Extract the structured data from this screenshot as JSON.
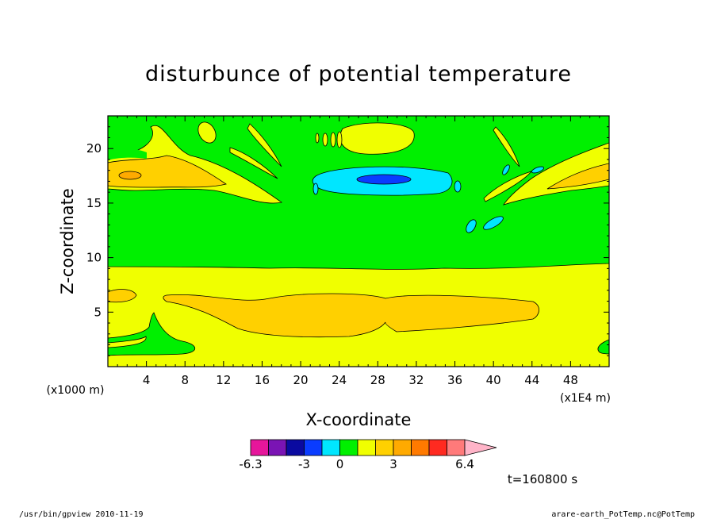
{
  "chart_data": {
    "type": "heatmap",
    "subtype": "filled-contour",
    "title": "disturbunce of potential temperature",
    "xlabel": "X-coordinate",
    "ylabel": "Z-coordinate",
    "x_unit": "(x1E4 m)",
    "y_unit": "(x1000 m)",
    "xlim": [
      0,
      52
    ],
    "ylim": [
      0,
      23
    ],
    "x_ticks": [
      4,
      8,
      12,
      16,
      20,
      24,
      28,
      32,
      36,
      40,
      44,
      48
    ],
    "y_ticks": [
      5,
      10,
      15,
      20
    ],
    "grid": false,
    "colorbar": {
      "placement": "bottom",
      "labels": [
        "-6.3",
        "-3",
        "0",
        "3",
        "6.4"
      ],
      "colors": [
        "#e6169b",
        "#7a14b4",
        "#0a0aa0",
        "#0a3cff",
        "#00e6ff",
        "#00f000",
        "#f0ff00",
        "#ffd000",
        "#ffaa00",
        "#ff7a00",
        "#ff2a20",
        "#ff7a7a",
        "#ffb4c8"
      ]
    },
    "background_level_color": "#f0ff00",
    "regions": [
      {
        "level": "0",
        "color": "#00f000",
        "desc": "upper layer z 9-23"
      },
      {
        "level": "1",
        "color": "#f0ff00",
        "desc": "lower layer z 0-9"
      },
      {
        "level": "2",
        "color": "#ffd000",
        "desc": "warm lens x 6-44 z 3-7"
      },
      {
        "level": "-1",
        "color": "#00e6ff",
        "desc": "cold cell near x 28 z 17"
      },
      {
        "level": "-2",
        "color": "#0a3cff",
        "desc": "core near x 28 z 17"
      }
    ],
    "time_label": "t=160800 s"
  },
  "footer": {
    "left": "/usr/bin/gpview   2010-11-19",
    "right": "arare-earth_PotTemp.nc@PotTemp"
  }
}
